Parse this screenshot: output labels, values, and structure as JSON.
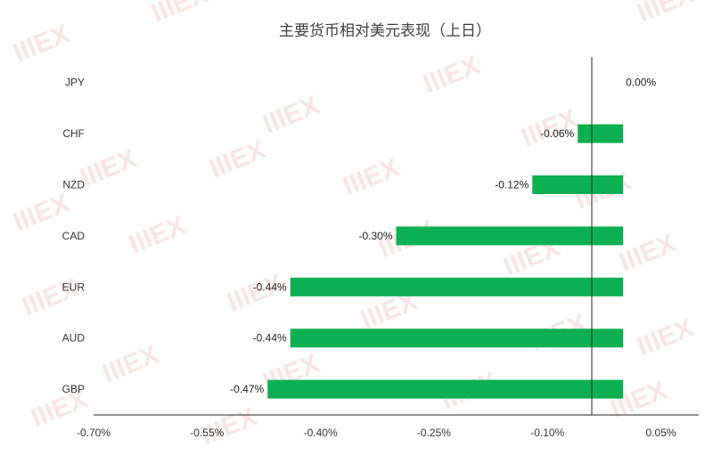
{
  "chart_data": {
    "type": "bar",
    "orientation": "horizontal",
    "title": "主要货币相对美元表现（上日）",
    "categories": [
      "JPY",
      "CHF",
      "NZD",
      "CAD",
      "EUR",
      "AUD",
      "GBP"
    ],
    "values": [
      0.0,
      -0.06,
      -0.12,
      -0.3,
      -0.44,
      -0.44,
      -0.47
    ],
    "data_labels": [
      "0.00%",
      "-0.06%",
      "-0.12%",
      "-0.30%",
      "-0.44%",
      "-0.44%",
      "-0.47%"
    ],
    "x_ticks": [
      -0.7,
      -0.55,
      -0.4,
      -0.25,
      -0.1,
      0.05
    ],
    "x_tick_labels": [
      "-0.70%",
      "-0.55%",
      "-0.40%",
      "-0.25%",
      "-0.10%",
      "0.05%"
    ],
    "xlim": [
      -0.7,
      0.1
    ],
    "xlabel": "",
    "ylabel": "",
    "grid": false,
    "legend": "none",
    "bar_color": "#0db050",
    "watermark": "IIIEX"
  }
}
